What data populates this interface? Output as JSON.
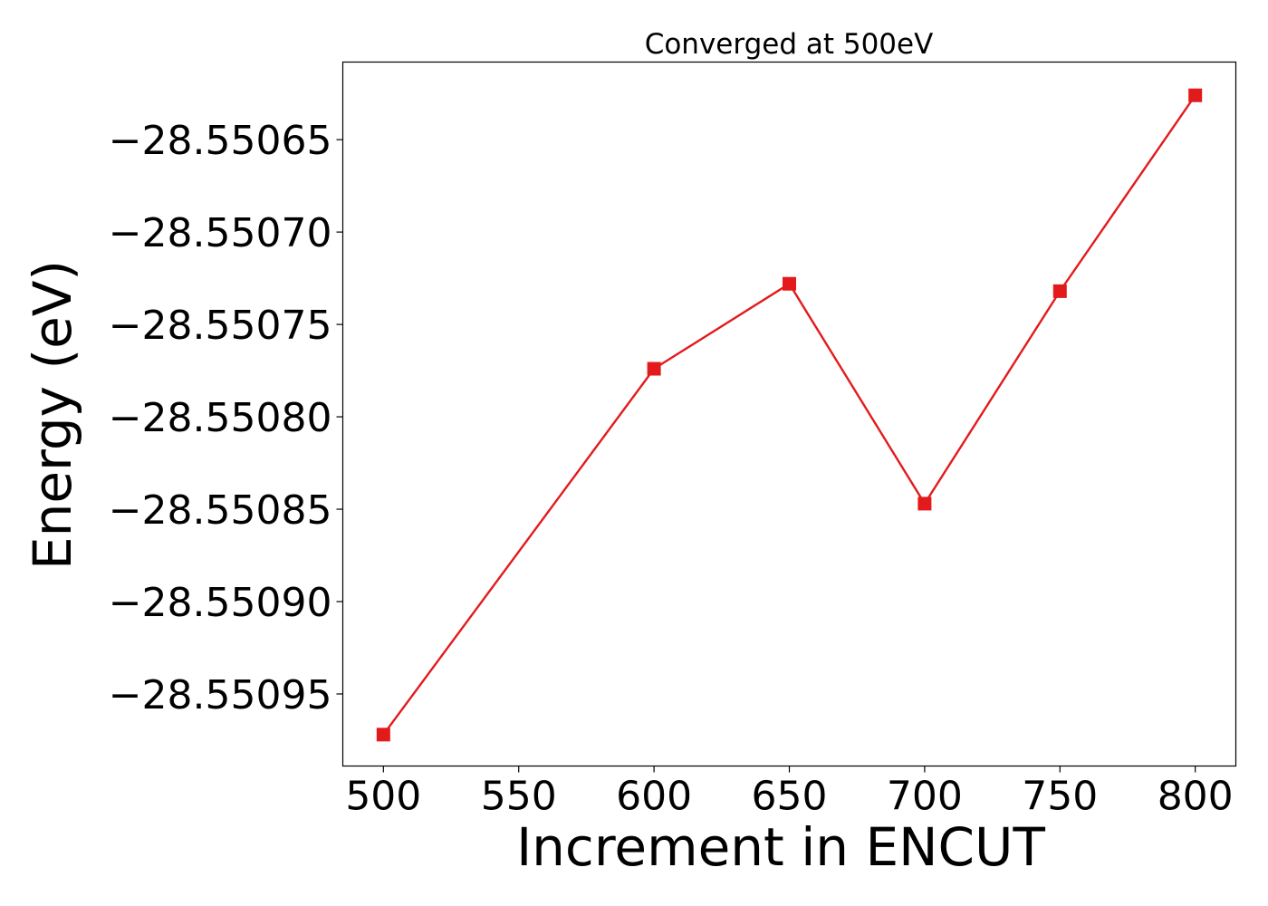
{
  "chart_data": {
    "type": "line",
    "title": "Converged at 500eV",
    "xlabel": "Increment in ENCUT",
    "ylabel": "Energy (eV)",
    "x": [
      500,
      600,
      650,
      700,
      750,
      800
    ],
    "series": [
      {
        "values": [
          -28.550972,
          -28.550774,
          -28.550728,
          -28.550847,
          -28.550732,
          -28.550626
        ],
        "color": "#e31a1c",
        "marker": "square"
      }
    ],
    "xticks": [
      500,
      550,
      600,
      650,
      700,
      750,
      800
    ],
    "xtick_labels": [
      "500",
      "550",
      "600",
      "650",
      "700",
      "750",
      "800"
    ],
    "yticks": [
      -28.55065,
      -28.5507,
      -28.55075,
      -28.5508,
      -28.55085,
      -28.5509,
      -28.55095
    ],
    "ytick_labels": [
      "−28.55065",
      "−28.55070",
      "−28.55075",
      "−28.55080",
      "−28.55085",
      "−28.55090",
      "−28.55095"
    ],
    "xlim": [
      485,
      815
    ],
    "ylim": [
      -28.550989,
      -28.550608
    ],
    "grid": false,
    "legend": "none"
  }
}
